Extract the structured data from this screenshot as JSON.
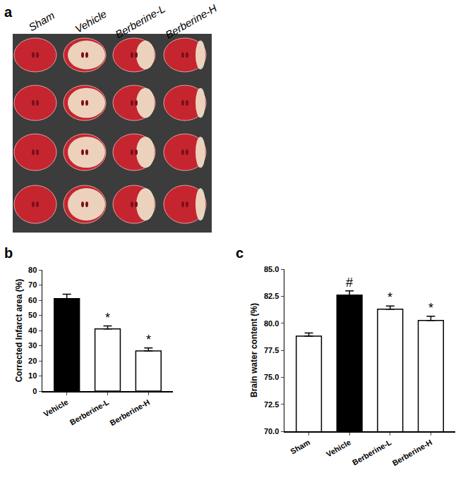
{
  "photo": {
    "panel": "a",
    "columns": [
      "Sham",
      "Vehicle",
      "Berberine-L",
      "Berberine-H"
    ]
  },
  "chart_data": [
    {
      "panel": "b",
      "type": "bar",
      "categories": [
        "Vehicle",
        "Berberine-L",
        "Berberine-H"
      ],
      "values": [
        61,
        41,
        26.5
      ],
      "errors": [
        3,
        2,
        2
      ],
      "colors": [
        "#000000",
        "#ffffff",
        "#ffffff"
      ],
      "y_label": "Corrected Infarct area (%)",
      "ylim": [
        0,
        80
      ],
      "yticks": [
        0,
        10,
        20,
        30,
        40,
        50,
        60,
        70,
        80
      ],
      "annotations": [
        {
          "text": "*",
          "category": "Berberine-L"
        },
        {
          "text": "*",
          "category": "Berberine-H"
        }
      ]
    },
    {
      "panel": "c",
      "type": "bar",
      "categories": [
        "Sham",
        "Vehicle",
        "Berberine-L",
        "Berberine-H"
      ],
      "values": [
        78.8,
        82.6,
        81.3,
        80.25
      ],
      "errors": [
        0.3,
        0.4,
        0.3,
        0.4
      ],
      "colors": [
        "#ffffff",
        "#000000",
        "#ffffff",
        "#ffffff"
      ],
      "y_label": "Brain water content (%)",
      "ylim": [
        70,
        85
      ],
      "yticks": [
        {
          "value": 70,
          "label": "70.0"
        },
        72.5,
        {
          "value": 75,
          "label": "75.0"
        },
        77.5,
        {
          "value": 80,
          "label": "80.0"
        },
        82.5,
        {
          "value": 85,
          "label": "85.0"
        }
      ],
      "annotations": [
        {
          "text": "#",
          "category": "Vehicle"
        },
        {
          "text": "*",
          "category": "Berberine-L"
        },
        {
          "text": "*",
          "category": "Berberine-H"
        }
      ]
    }
  ]
}
